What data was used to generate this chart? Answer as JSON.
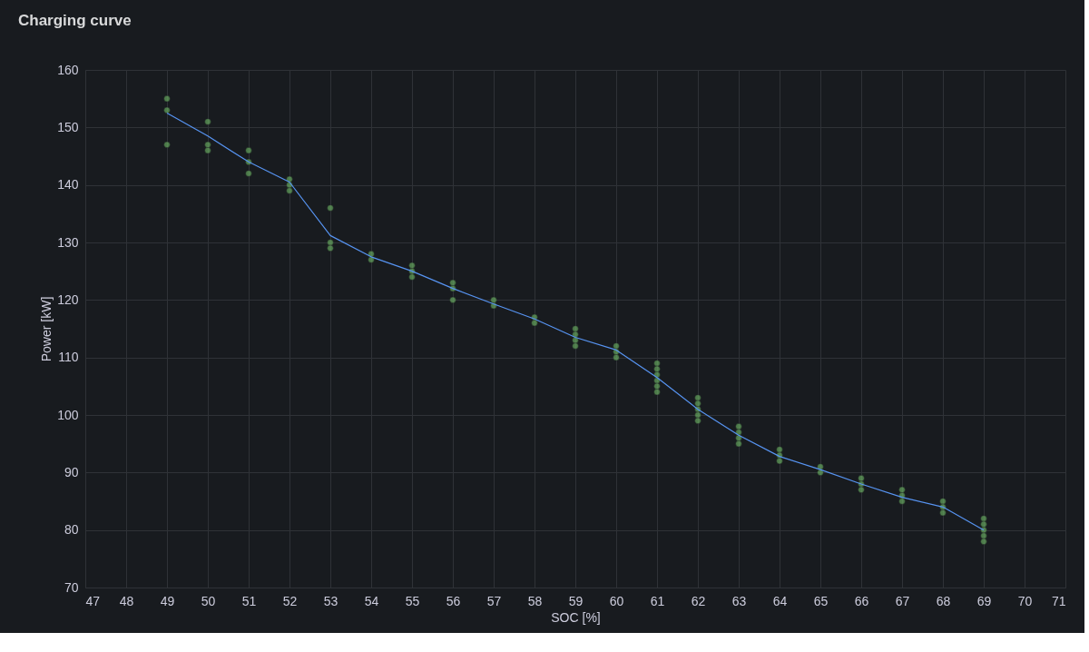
{
  "chart_data": {
    "type": "scatter",
    "title": "Charging curve",
    "xlabel": "SOC [%]",
    "ylabel": "Power [kW]",
    "xlim": [
      47,
      71
    ],
    "xticks": [
      47,
      48,
      49,
      50,
      51,
      52,
      53,
      54,
      55,
      56,
      57,
      58,
      59,
      60,
      61,
      62,
      63,
      64,
      65,
      66,
      67,
      68,
      69,
      70,
      71
    ],
    "ylim": [
      70,
      160
    ],
    "yticks": [
      70,
      80,
      90,
      100,
      110,
      120,
      130,
      140,
      150,
      160
    ],
    "grid": true,
    "series": [
      {
        "marker": "circle",
        "color": "#73bf69",
        "x": [
          49,
          49,
          49,
          50,
          50,
          50,
          51,
          51,
          51,
          52,
          52,
          52,
          53,
          53,
          53,
          54,
          54,
          55,
          55,
          55,
          56,
          56,
          56,
          57,
          57,
          58,
          58,
          59,
          59,
          59,
          59,
          60,
          60,
          60,
          61,
          61,
          61,
          61,
          61,
          61,
          62,
          62,
          62,
          62,
          62,
          63,
          63,
          63,
          63,
          64,
          64,
          64,
          65,
          65,
          66,
          66,
          66,
          67,
          67,
          67,
          68,
          68,
          68,
          69,
          69,
          69,
          69,
          69
        ],
        "values": [
          155,
          153,
          147,
          151,
          147,
          146,
          146,
          144,
          142,
          141,
          140,
          139,
          136,
          130,
          129,
          128,
          127,
          126,
          125,
          124,
          123,
          122,
          120,
          120,
          119,
          117,
          116,
          115,
          114,
          113,
          112,
          112,
          111,
          110,
          109,
          108,
          107,
          106,
          105,
          104,
          103,
          102,
          101,
          100,
          99,
          98,
          97,
          96,
          95,
          94,
          93,
          92,
          91,
          90,
          89,
          88,
          87,
          87,
          86,
          85,
          85,
          84,
          83,
          82,
          81,
          80,
          79,
          78
        ]
      },
      {
        "type": "line",
        "marker": "none",
        "line_style": "solid",
        "color": "#5794f2",
        "x": [
          49,
          50,
          51,
          52,
          53,
          54,
          55,
          56,
          57,
          58,
          59,
          60,
          61,
          62,
          63,
          64,
          65,
          66,
          67,
          68,
          69
        ],
        "values": [
          152.5,
          148.5,
          144,
          140.5,
          131.2,
          127.5,
          125,
          122,
          119.3,
          116.7,
          113.5,
          111.3,
          106.5,
          101,
          96.5,
          92.8,
          90.5,
          88,
          85.7,
          84,
          80
        ]
      }
    ]
  }
}
